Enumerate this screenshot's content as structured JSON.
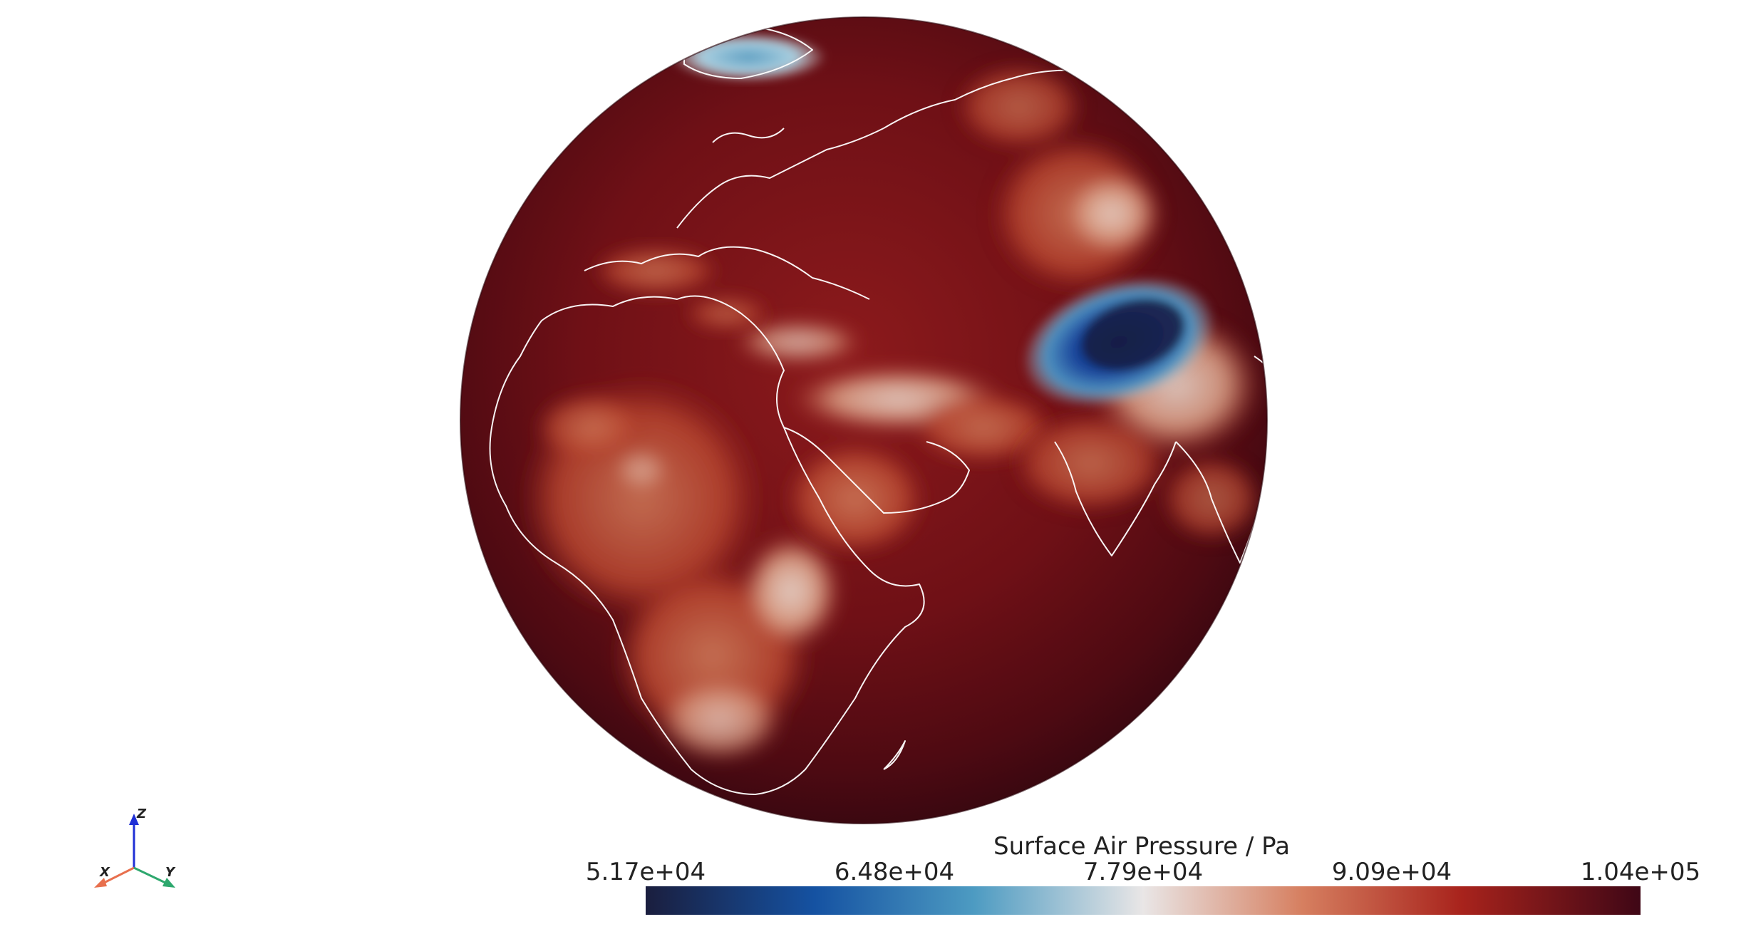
{
  "scalar_bar": {
    "title": "Surface Air Pressure / Pa",
    "ticks": [
      "5.17e+04",
      "6.48e+04",
      "7.79e+04",
      "9.09e+04",
      "1.04e+05"
    ],
    "range": [
      51700,
      104000
    ],
    "colormap_stops": [
      "#1a1e3e",
      "#1552a2",
      "#4d9bc2",
      "#e9e6e6",
      "#d67f60",
      "#a8231c",
      "#3f0716"
    ]
  },
  "orientation_axes": {
    "x_label": "X",
    "y_label": "Y",
    "z_label": "Z",
    "x_color": "#e8704e",
    "y_color": "#2ea86e",
    "z_color": "#1f2fd6"
  },
  "globe": {
    "view": "Europe, Africa and Asia",
    "base_color": "#6e0f15",
    "coastline_color": "#ffffff"
  }
}
